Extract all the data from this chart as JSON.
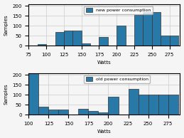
{
  "new_hist_edges": [
    75,
    87.5,
    100,
    112.5,
    125,
    137.5,
    150,
    162.5,
    175,
    187.5,
    200,
    212.5,
    225,
    237.5,
    250,
    262.5,
    275,
    287.5
  ],
  "new_hist_values": [
    0,
    7,
    0,
    70,
    75,
    75,
    10,
    0,
    45,
    0,
    100,
    0,
    155,
    170,
    170,
    50,
    50
  ],
  "old_hist_edges": [
    100,
    112.5,
    125,
    137.5,
    150,
    162.5,
    175,
    187.5,
    200,
    212.5,
    225,
    237.5,
    250,
    262.5,
    275,
    287.5
  ],
  "old_hist_values": [
    210,
    40,
    25,
    25,
    0,
    30,
    20,
    10,
    90,
    0,
    130,
    100,
    100,
    100,
    100
  ],
  "bar_color": "#2878a8",
  "bar_edge_color": "#333333",
  "new_legend": "new power consumption",
  "old_legend": "old power consumption",
  "xlabel": "Watts",
  "ylabel": "Samples",
  "new_xlim": [
    75,
    290
  ],
  "old_xlim": [
    100,
    290
  ],
  "ylim": [
    0,
    210
  ],
  "new_xticks": [
    75,
    100,
    125,
    150,
    175,
    200,
    225,
    250,
    275
  ],
  "old_xticks": [
    100,
    125,
    150,
    175,
    200,
    225,
    250,
    275
  ],
  "yticks": [
    0,
    50,
    100,
    150,
    200
  ],
  "grid_color": "#cccccc",
  "bg_color": "#f5f5f5"
}
